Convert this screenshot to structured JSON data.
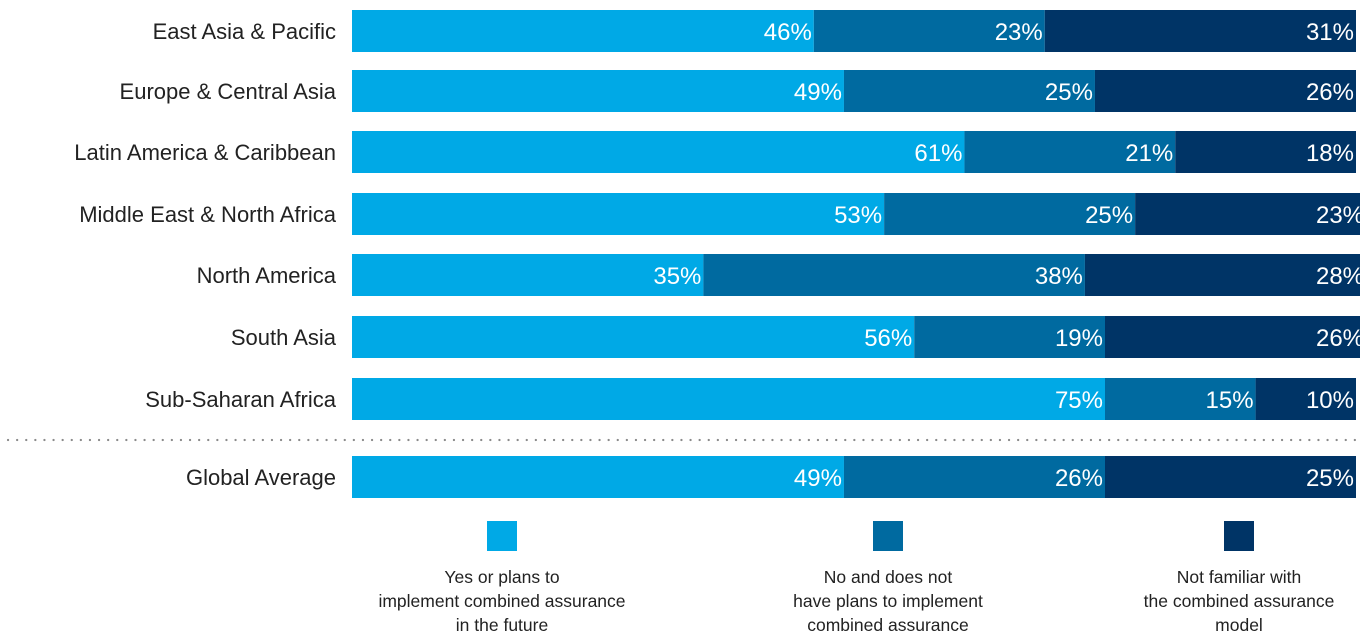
{
  "chart_data": {
    "type": "bar",
    "orientation": "horizontal",
    "stacked": true,
    "percent_suffix": "%",
    "categories": [
      "East Asia & Pacific",
      "Europe & Central Asia",
      "Latin America & Caribbean",
      "Middle East & North Africa",
      "North America",
      "South Asia",
      "Sub-Saharan Africa",
      "Global Average"
    ],
    "separator_before": "Global Average",
    "series": [
      {
        "name": "Yes or plans to implement combined assurance in the future",
        "legend_lines": [
          "Yes or plans to",
          "implement combined assurance",
          "in the future"
        ],
        "color": "#00a9e6",
        "values": [
          46,
          49,
          61,
          53,
          35,
          56,
          75,
          49
        ]
      },
      {
        "name": "No and does not have plans to implement combined assurance",
        "legend_lines": [
          "No and does not",
          "have plans to implement",
          "combined assurance"
        ],
        "color": "#006aa0",
        "values": [
          23,
          25,
          21,
          25,
          38,
          19,
          15,
          26
        ]
      },
      {
        "name": "Not familiar with the combined assurance model",
        "legend_lines": [
          "Not familiar with",
          "the combined assurance",
          "model"
        ],
        "color": "#003466",
        "values": [
          31,
          26,
          18,
          23,
          28,
          26,
          10,
          25
        ]
      }
    ],
    "xlim": [
      0,
      100
    ],
    "grid": false,
    "legend_position": "bottom"
  }
}
